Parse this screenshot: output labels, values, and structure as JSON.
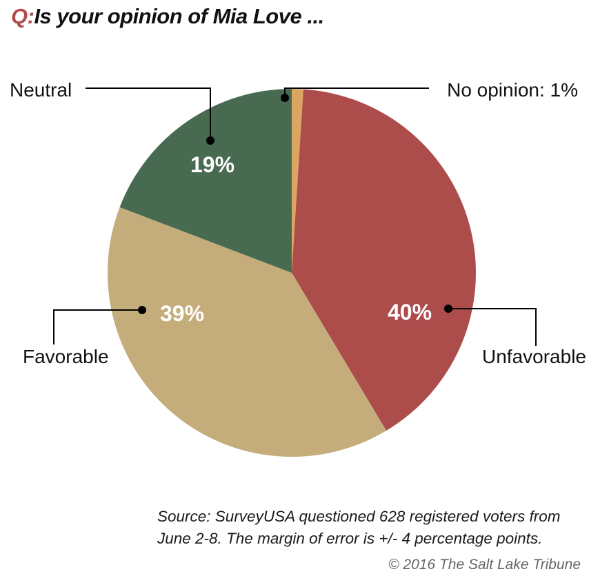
{
  "header": {
    "q_prefix": "Q:",
    "question": "Is your opinion of Mia Love ..."
  },
  "chart_data": {
    "type": "pie",
    "categories": [
      "No opinion",
      "Unfavorable",
      "Favorable",
      "Neutral"
    ],
    "values": [
      1,
      40,
      39,
      19
    ],
    "display_labels": [
      "No opinion: 1%",
      "Unfavorable",
      "Favorable",
      "Neutral"
    ],
    "value_labels": [
      "",
      "40%",
      "39%",
      "19%"
    ],
    "colors": [
      "#dba662",
      "#ad4d4b",
      "#c4ad7a",
      "#486a50"
    ]
  },
  "footer": {
    "source": "Source: SurveyUSA questioned 628 registered voters from June 2-8. The margin of error is +/- 4 percentage points.",
    "copyright": "© 2016 The Salt Lake Tribune"
  }
}
